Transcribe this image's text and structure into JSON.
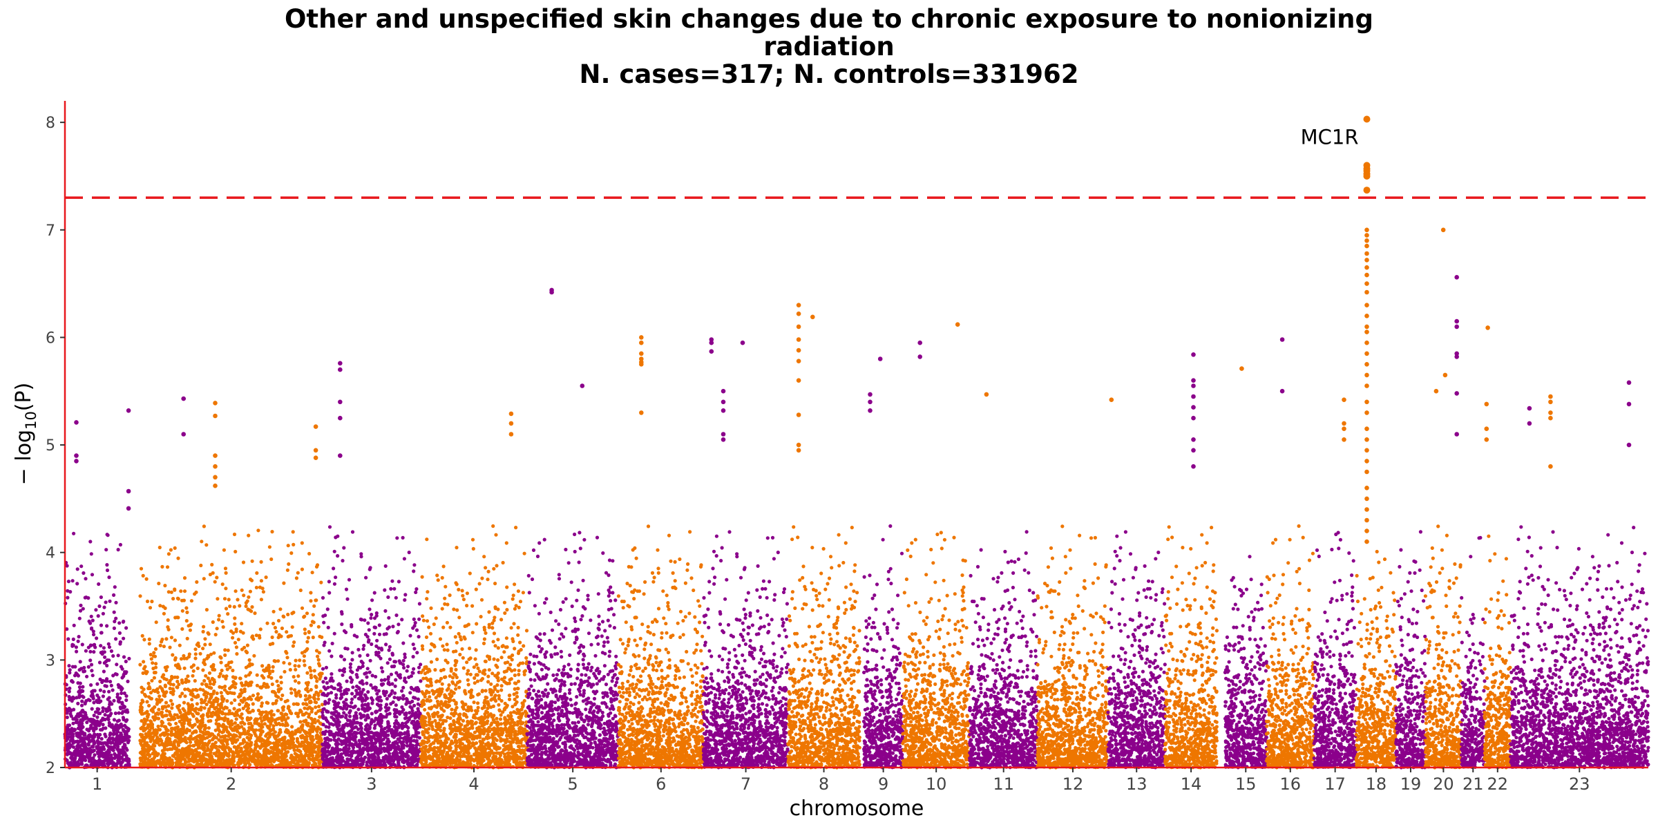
{
  "chart_data": {
    "type": "scatter",
    "subtype": "manhattan",
    "title_lines": [
      "Other and unspecified skin changes due to chronic exposure to nonionizing",
      "radiation",
      "N. cases=317; N. controls=331962"
    ],
    "xlabel": "chromosome",
    "ylabel_prefix": "− log",
    "ylabel_sub": "10",
    "ylabel_suffix": "(P)",
    "ylim": [
      2,
      8.2
    ],
    "yticks": [
      2,
      3,
      4,
      5,
      6,
      7,
      8
    ],
    "significance_line": 7.3,
    "colors": {
      "odd": "#8B008B",
      "even": "#EE7600",
      "axis": "#E8171C",
      "threshold": "#E8171C"
    },
    "chromosomes": [
      {
        "label": "1",
        "span": [
          0.0,
          0.0407
        ]
      },
      {
        "label": "2",
        "span": [
          0.0474,
          0.1626
        ]
      },
      {
        "label": "3",
        "span": [
          0.1626,
          0.2247
        ]
      },
      {
        "label": "4",
        "span": [
          0.2247,
          0.2919
        ]
      },
      {
        "label": "5",
        "span": [
          0.2919,
          0.3496
        ]
      },
      {
        "label": "6",
        "span": [
          0.3496,
          0.4033
        ]
      },
      {
        "label": "7",
        "span": [
          0.4033,
          0.4567
        ]
      },
      {
        "label": "8",
        "span": [
          0.4567,
          0.5019
        ]
      },
      {
        "label": "9",
        "span": [
          0.5045,
          0.5292
        ]
      },
      {
        "label": "10",
        "span": [
          0.5292,
          0.5713
        ]
      },
      {
        "label": "11",
        "span": [
          0.5713,
          0.6143
        ]
      },
      {
        "label": "12",
        "span": [
          0.6143,
          0.6588
        ]
      },
      {
        "label": "13",
        "span": [
          0.6588,
          0.6948
        ]
      },
      {
        "label": "14",
        "span": [
          0.6948,
          0.7276
        ]
      },
      {
        "label": "15",
        "span": [
          0.7326,
          0.7589
        ]
      },
      {
        "label": "16",
        "span": [
          0.7589,
          0.7889
        ]
      },
      {
        "label": "17",
        "span": [
          0.7889,
          0.8155
        ]
      },
      {
        "label": "18",
        "span": [
          0.8155,
          0.8406
        ]
      },
      {
        "label": "19",
        "span": [
          0.8406,
          0.8592
        ]
      },
      {
        "label": "20",
        "span": [
          0.8592,
          0.882
        ]
      },
      {
        "label": "21",
        "span": [
          0.882,
          0.8966
        ]
      },
      {
        "label": "22",
        "span": [
          0.8966,
          0.913
        ]
      },
      {
        "label": "23",
        "span": [
          0.913,
          1.0
        ]
      }
    ],
    "peaks": [
      {
        "chrom": "1",
        "x": 0.0402,
        "values": [
          5.32,
          4.57,
          4.41
        ]
      },
      {
        "chrom": "1",
        "x": 0.0072,
        "values": [
          5.21,
          4.9,
          4.85
        ]
      },
      {
        "chrom": "1",
        "x": 0.0749,
        "values": [
          5.43,
          5.1
        ]
      },
      {
        "chrom": "2",
        "x": 0.0949,
        "values": [
          5.39,
          5.27,
          4.9,
          4.8,
          4.7,
          4.62
        ]
      },
      {
        "chrom": "2",
        "x": 0.1584,
        "values": [
          5.17,
          4.95,
          4.88
        ]
      },
      {
        "chrom": "3",
        "x": 0.1738,
        "values": [
          5.76,
          5.7,
          5.4,
          5.25,
          4.9
        ]
      },
      {
        "chrom": "4",
        "x": 0.2818,
        "values": [
          5.29,
          5.2,
          5.1
        ]
      },
      {
        "chrom": "5",
        "x": 0.3074,
        "values": [
          6.44,
          6.42
        ]
      },
      {
        "chrom": "5",
        "x": 0.3267,
        "values": [
          5.55
        ]
      },
      {
        "chrom": "6",
        "x": 0.364,
        "values": [
          6.0,
          5.95,
          5.85,
          5.8,
          5.77,
          5.75,
          5.3
        ]
      },
      {
        "chrom": "7",
        "x": 0.4083,
        "values": [
          5.98,
          5.95,
          5.87
        ]
      },
      {
        "chrom": "7",
        "x": 0.428,
        "values": [
          5.95
        ]
      },
      {
        "chrom": "7",
        "x": 0.4158,
        "values": [
          5.5,
          5.4,
          5.32,
          5.1,
          5.05
        ]
      },
      {
        "chrom": "8",
        "x": 0.4634,
        "values": [
          6.3,
          6.22,
          6.1,
          5.98,
          5.88,
          5.78,
          5.6,
          5.28,
          5.0,
          4.95
        ]
      },
      {
        "chrom": "8",
        "x": 0.4722,
        "values": [
          6.19
        ]
      },
      {
        "chrom": "9",
        "x": 0.5149,
        "values": [
          5.8
        ]
      },
      {
        "chrom": "9",
        "x": 0.5085,
        "values": [
          5.47,
          5.4,
          5.32
        ]
      },
      {
        "chrom": "9",
        "x": 0.54,
        "values": [
          5.95,
          5.82
        ]
      },
      {
        "chrom": "10",
        "x": 0.5638,
        "values": [
          6.12
        ]
      },
      {
        "chrom": "10",
        "x": 0.582,
        "values": [
          5.47
        ]
      },
      {
        "chrom": "12",
        "x": 0.6609,
        "values": [
          5.42
        ]
      },
      {
        "chrom": "13",
        "x": 0.7127,
        "values": [
          5.84,
          5.6,
          5.55,
          5.45,
          5.35,
          5.25,
          5.05,
          4.95,
          4.8
        ]
      },
      {
        "chrom": "14",
        "x": 0.7432,
        "values": [
          5.71
        ]
      },
      {
        "chrom": "15",
        "x": 0.7688,
        "values": [
          5.98,
          5.5
        ]
      },
      {
        "chrom": "16",
        "x": 0.8078,
        "values": [
          5.42,
          5.2,
          5.15,
          5.05
        ]
      },
      {
        "chrom": "16",
        "x": 0.8222,
        "values": [
          8.03,
          7.6,
          7.57,
          7.55,
          7.52,
          7.5,
          7.37,
          7.0,
          6.95,
          6.9,
          6.85,
          6.78,
          6.72,
          6.65,
          6.58,
          6.5,
          6.42,
          6.3,
          6.2,
          6.1,
          6.05,
          5.95,
          5.85,
          5.75,
          5.65,
          5.55,
          5.4,
          5.3,
          5.15,
          5.05,
          4.95,
          4.85,
          4.75,
          4.6,
          4.5,
          4.4,
          4.3,
          4.2,
          4.1
        ]
      },
      {
        "chrom": "18",
        "x": 0.8705,
        "values": [
          7.0
        ]
      },
      {
        "chrom": "18",
        "x": 0.8717,
        "values": [
          5.65
        ]
      },
      {
        "chrom": "18",
        "x": 0.866,
        "values": [
          5.5
        ]
      },
      {
        "chrom": "19",
        "x": 0.879,
        "values": [
          6.56,
          6.15,
          6.1,
          5.85,
          5.82,
          5.48,
          5.1
        ]
      },
      {
        "chrom": "20",
        "x": 0.8986,
        "values": [
          6.09
        ]
      },
      {
        "chrom": "20",
        "x": 0.8978,
        "values": [
          5.38,
          5.15,
          5.05
        ]
      },
      {
        "chrom": "21",
        "x": 0.9249,
        "values": [
          5.34,
          5.2
        ]
      },
      {
        "chrom": "22",
        "x": 0.9382,
        "values": [
          5.45,
          5.4,
          5.3,
          5.25,
          4.8
        ]
      },
      {
        "chrom": "23",
        "x": 0.9878,
        "values": [
          5.58,
          5.38,
          5.0
        ]
      }
    ],
    "annotations": [
      {
        "text": "MC1R",
        "x": 0.8222,
        "y": 8.03
      }
    ]
  }
}
